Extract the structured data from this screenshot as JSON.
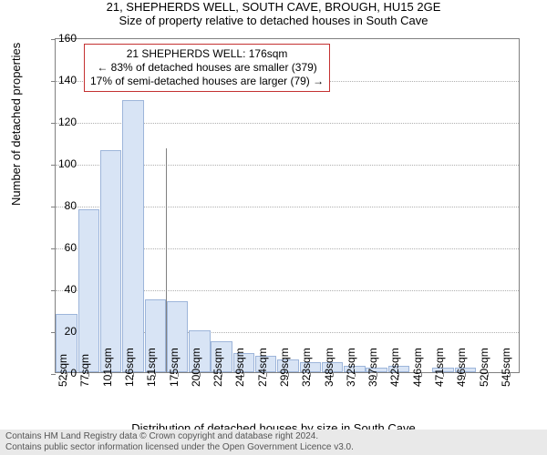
{
  "title": "21, SHEPHERDS WELL, SOUTH CAVE, BROUGH, HU15 2GE",
  "subtitle": "Size of property relative to detached houses in South Cave",
  "y_axis_label": "Number of detached properties",
  "x_axis_label": "Distribution of detached houses by size in South Cave",
  "chart": {
    "type": "histogram",
    "ylim": [
      0,
      160
    ],
    "yticks": [
      0,
      20,
      40,
      60,
      80,
      100,
      120,
      140,
      160
    ],
    "bar_fill": "#d8e4f5",
    "bar_border": "#9db5da",
    "plot_border": "#808080",
    "grid_color": "#b0b0b0",
    "background": "#ffffff",
    "marker_x": 176,
    "categories": [
      "52sqm",
      "77sqm",
      "101sqm",
      "126sqm",
      "151sqm",
      "175sqm",
      "200sqm",
      "225sqm",
      "249sqm",
      "274sqm",
      "299sqm",
      "323sqm",
      "348sqm",
      "372sqm",
      "397sqm",
      "422sqm",
      "446sqm",
      "471sqm",
      "496sqm",
      "520sqm",
      "545sqm"
    ],
    "values": [
      28,
      78,
      106,
      130,
      35,
      34,
      20,
      15,
      9,
      8,
      6,
      5,
      5,
      3,
      2,
      3,
      0,
      2,
      2,
      0,
      0
    ]
  },
  "annotation": {
    "line1": "21 SHEPHERDS WELL: 176sqm",
    "line2": "← 83% of detached houses are smaller (379)",
    "line3": "17% of semi-detached houses are larger (79) →",
    "border_color": "#c43131"
  },
  "footer": {
    "line1": "Contains HM Land Registry data © Crown copyright and database right 2024.",
    "line2": "Contains public sector information licensed under the Open Government Licence v3.0."
  }
}
